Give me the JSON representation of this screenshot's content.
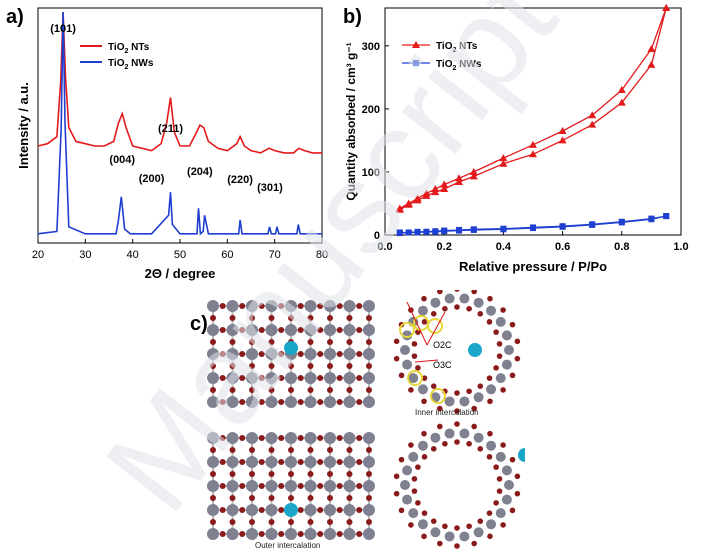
{
  "panels": {
    "a_label": "a)",
    "b_label": "b)",
    "c_label": "c)"
  },
  "chart_data": [
    {
      "type": "line",
      "xlabel": "2Θ / degree",
      "ylabel": "Intensity / a.u.",
      "xlim": [
        20,
        80
      ],
      "xticks": [
        20,
        30,
        40,
        50,
        60,
        70,
        80
      ],
      "yticks_shown": false,
      "legend_placement": "top-right",
      "series": [
        {
          "name": "TiO2 NTs",
          "color": "#e31a1c",
          "x": [
            20,
            22,
            24,
            24.8,
            25.3,
            25.8,
            26.5,
            28,
            30,
            32,
            34,
            36,
            37,
            37.8,
            38.6,
            40,
            42,
            44,
            46,
            47.2,
            48,
            48.8,
            50,
            52,
            53.5,
            54.2,
            55,
            56,
            58,
            60,
            62,
            62.7,
            63.6,
            65,
            67,
            68.8,
            70,
            72,
            74,
            75.1,
            76.3,
            78,
            80
          ],
          "y": [
            0.42,
            0.43,
            0.46,
            0.7,
            1.0,
            0.72,
            0.5,
            0.44,
            0.43,
            0.42,
            0.42,
            0.44,
            0.52,
            0.56,
            0.5,
            0.42,
            0.41,
            0.4,
            0.43,
            0.52,
            0.63,
            0.48,
            0.42,
            0.42,
            0.48,
            0.51,
            0.5,
            0.44,
            0.41,
            0.4,
            0.43,
            0.46,
            0.42,
            0.4,
            0.39,
            0.41,
            0.4,
            0.39,
            0.39,
            0.41,
            0.4,
            0.39,
            0.39
          ]
        },
        {
          "name": "TiO2 NWs",
          "color": "#1f3fd1",
          "x": [
            20,
            24,
            24.9,
            25.3,
            25.7,
            26.5,
            30,
            36.5,
            37,
            37.6,
            38.3,
            39.5,
            44,
            47.6,
            48,
            48.4,
            50,
            53.6,
            53.9,
            54.3,
            54.9,
            55.2,
            56,
            62.4,
            62.7,
            63.1,
            68.6,
            68.9,
            69.3,
            70.2,
            70.5,
            70.9,
            74.7,
            75,
            75.4,
            80
          ],
          "y": [
            0.04,
            0.05,
            0.5,
            1.0,
            0.52,
            0.07,
            0.04,
            0.04,
            0.1,
            0.2,
            0.06,
            0.04,
            0.04,
            0.12,
            0.22,
            0.08,
            0.04,
            0.04,
            0.15,
            0.04,
            0.05,
            0.12,
            0.04,
            0.04,
            0.1,
            0.04,
            0.04,
            0.07,
            0.04,
            0.04,
            0.07,
            0.04,
            0.04,
            0.08,
            0.04,
            0.04
          ]
        }
      ],
      "peak_labels": [
        {
          "text": "(101)",
          "x": 25.3
        },
        {
          "text": "(004)",
          "x": 37.8
        },
        {
          "text": "(200)",
          "x": 44.0
        },
        {
          "text": "(211)",
          "x": 48.0
        },
        {
          "text": "(204)",
          "x": 54.2
        },
        {
          "text": "(220)",
          "x": 62.7
        },
        {
          "text": "(301)",
          "x": 69.0
        }
      ]
    },
    {
      "type": "line",
      "xlabel": "Relative pressure / P/Po",
      "ylabel": "Quantity absorbed / cm³ g⁻¹",
      "xlim": [
        0,
        1.0
      ],
      "ylim": [
        0,
        360
      ],
      "xticks": [
        0.0,
        0.2,
        0.4,
        0.6,
        0.8,
        1.0
      ],
      "yticks": [
        0,
        100,
        200,
        300
      ],
      "legend_placement": "top-left",
      "series": [
        {
          "name": "TiO2 NTs adsorption",
          "legend_name": "TiO2 NTs",
          "color": "#e31a1c",
          "marker": "triangle",
          "x": [
            0.05,
            0.08,
            0.11,
            0.14,
            0.17,
            0.2,
            0.25,
            0.3,
            0.4,
            0.5,
            0.6,
            0.7,
            0.8,
            0.9,
            0.95
          ],
          "y": [
            40,
            48,
            55,
            62,
            68,
            73,
            84,
            93,
            113,
            128,
            150,
            175,
            210,
            270,
            360
          ]
        },
        {
          "name": "TiO2 NTs desorption",
          "color": "#e31a1c",
          "marker": "triangle",
          "x": [
            0.95,
            0.9,
            0.8,
            0.7,
            0.6,
            0.5,
            0.4,
            0.3,
            0.25,
            0.2,
            0.17,
            0.14,
            0.11,
            0.08,
            0.05
          ],
          "y": [
            360,
            295,
            230,
            190,
            165,
            143,
            122,
            100,
            90,
            80,
            73,
            66,
            58,
            50,
            42
          ]
        },
        {
          "name": "TiO2 NWs adsorption",
          "legend_name": "TiO2 NWs",
          "color": "#1f3fd1",
          "marker": "square",
          "x": [
            0.05,
            0.08,
            0.11,
            0.14,
            0.17,
            0.2,
            0.25,
            0.3,
            0.4,
            0.5,
            0.6,
            0.7,
            0.8,
            0.9,
            0.95
          ],
          "y": [
            3,
            4,
            4,
            5,
            5,
            6,
            7,
            8,
            9,
            11,
            13,
            16,
            20,
            25,
            30
          ]
        },
        {
          "name": "TiO2 NWs desorption",
          "color": "#1f3fd1",
          "marker": "square",
          "x": [
            0.95,
            0.9,
            0.8,
            0.7,
            0.6,
            0.5,
            0.4,
            0.3,
            0.25,
            0.2,
            0.17,
            0.14,
            0.11,
            0.08,
            0.05
          ],
          "y": [
            30,
            26,
            21,
            17,
            14,
            12,
            10,
            9,
            8,
            7,
            6,
            5,
            5,
            4,
            4
          ]
        }
      ]
    }
  ],
  "structures": {
    "inner_caption": "Inner intercalation",
    "outer_caption": "Outer intercalation",
    "o2c_label": "O2C",
    "o3c_label": "O3C",
    "colors": {
      "titanium": "#7f8190",
      "oxygen": "#8b1a1a",
      "dopant": "#1aa6c8",
      "highlight": "#e6d63a"
    }
  },
  "watermark": {
    "text": "Manuscript",
    "color": "#d8dde6"
  }
}
